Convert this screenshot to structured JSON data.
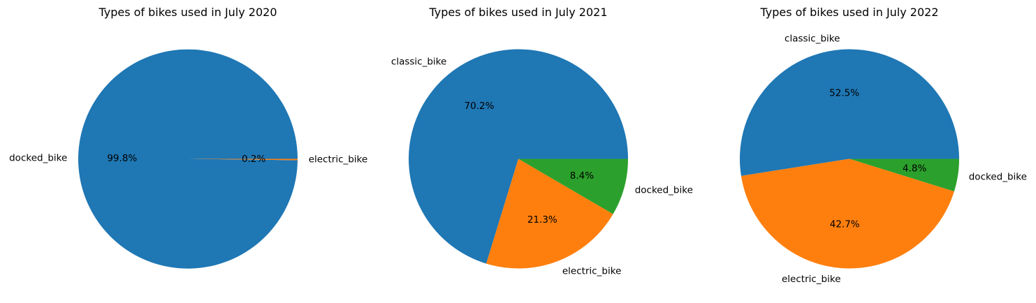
{
  "chart_data": [
    {
      "type": "pie",
      "title": "Types of bikes used in July 2020",
      "slices": [
        {
          "label": "docked_bike",
          "value": 99.8,
          "pct_label": "99.8%",
          "color": "#1f77b4"
        },
        {
          "label": "electric_bike",
          "value": 0.2,
          "pct_label": "0.2%",
          "color": "#ff7f0e"
        }
      ]
    },
    {
      "type": "pie",
      "title": "Types of bikes used in July 2021",
      "slices": [
        {
          "label": "classic_bike",
          "value": 70.2,
          "pct_label": "70.2%",
          "color": "#1f77b4"
        },
        {
          "label": "electric_bike",
          "value": 21.3,
          "pct_label": "21.3%",
          "color": "#ff7f0e"
        },
        {
          "label": "docked_bike",
          "value": 8.4,
          "pct_label": "8.4%",
          "color": "#2ca02c"
        }
      ]
    },
    {
      "type": "pie",
      "title": "Types of bikes used in July 2022",
      "slices": [
        {
          "label": "classic_bike",
          "value": 52.5,
          "pct_label": "52.5%",
          "color": "#1f77b4"
        },
        {
          "label": "electric_bike",
          "value": 42.7,
          "pct_label": "42.7%",
          "color": "#ff7f0e"
        },
        {
          "label": "docked_bike",
          "value": 4.8,
          "pct_label": "4.8%",
          "color": "#2ca02c"
        }
      ]
    }
  ]
}
